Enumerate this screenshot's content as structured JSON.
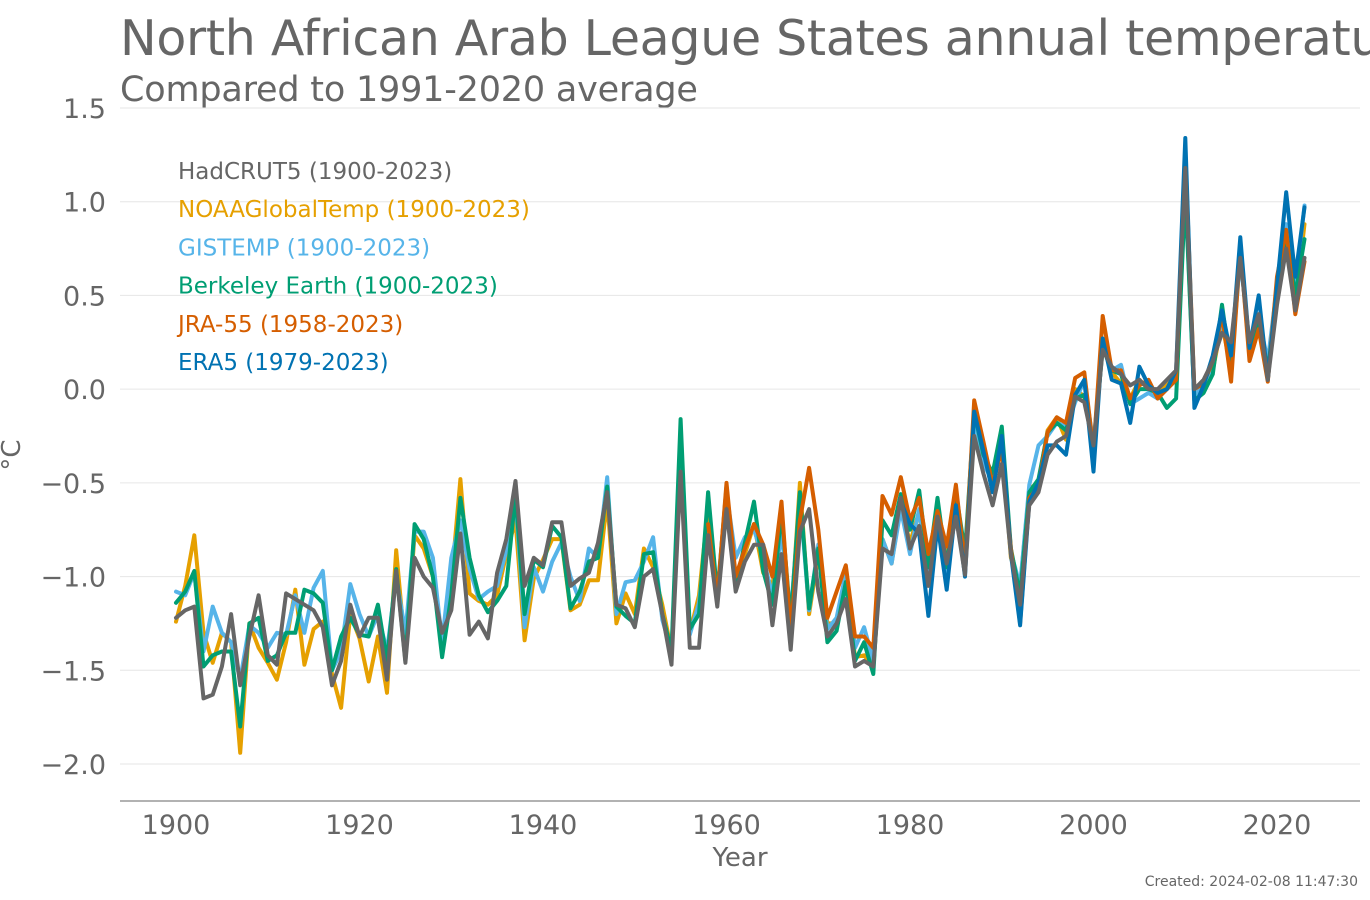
{
  "chart_data": {
    "type": "line",
    "title": "North African Arab League States annual temperature",
    "subtitle": "Compared to 1991-2020 average",
    "xlabel": "Year",
    "ylabel": "°C",
    "xlim": [
      1894,
      2029
    ],
    "ylim": [
      -2.2,
      1.5
    ],
    "x_ticks": [
      1900,
      1920,
      1940,
      1960,
      1980,
      2000,
      2020
    ],
    "x_tick_labels": [
      "1900",
      "1920",
      "1940",
      "1960",
      "1980",
      "2000",
      "2020"
    ],
    "y_ticks": [
      1.5,
      1.0,
      0.5,
      0.0,
      -0.5,
      -1.0,
      -1.5,
      -2.0
    ],
    "y_tick_labels": [
      "1.5",
      "1.0",
      "0.5",
      "0.0",
      "−0.5",
      "−1.0",
      "−1.5",
      "−2.0"
    ],
    "grid": true,
    "legend_position": "top-left",
    "created": "Created: 2024-02-08 11:47:30",
    "series": [
      {
        "name": "NOAAGlobalTemp (1900-2023)",
        "color": "#E6A000",
        "start": 1900,
        "values": [
          -1.24,
          -1.05,
          -0.78,
          -1.3,
          -1.46,
          -1.3,
          -1.35,
          -1.94,
          -1.25,
          -1.38,
          -1.46,
          -1.55,
          -1.35,
          -1.07,
          -1.47,
          -1.28,
          -1.24,
          -1.52,
          -1.7,
          -1.2,
          -1.33,
          -1.56,
          -1.32,
          -1.62,
          -0.86,
          -1.4,
          -0.78,
          -0.85,
          -1.0,
          -1.37,
          -1.03,
          -0.48,
          -1.09,
          -1.13,
          -1.15,
          -1.1,
          -0.88,
          -0.7,
          -1.34,
          -1.01,
          -0.91,
          -0.8,
          -0.8,
          -1.18,
          -1.15,
          -1.02,
          -1.02,
          -0.59,
          -1.25,
          -1.09,
          -1.2,
          -0.85,
          -0.95,
          -1.15,
          -1.4,
          -0.33,
          -1.3,
          -1.1,
          -0.63,
          -1.1,
          -0.62,
          -1.0,
          -0.88,
          -0.72,
          -0.98,
          -1.05,
          -0.7,
          -1.25,
          -0.5,
          -1.2,
          -0.88,
          -1.25,
          -1.25,
          -1.0,
          -1.43,
          -1.42,
          -1.48,
          -0.8,
          -0.93,
          -0.62,
          -0.82,
          -0.65,
          -1.0,
          -0.65,
          -0.93,
          -0.55,
          -0.95,
          -0.16,
          -0.32,
          -0.5,
          -0.3,
          -0.9,
          -1.05,
          -0.53,
          -0.5,
          -0.22,
          -0.15,
          -0.27,
          0.0,
          -0.04,
          -0.3,
          0.25,
          0.09,
          0.03,
          -0.05,
          0.05,
          0.0,
          -0.02,
          0.02,
          0.07,
          1.08,
          -0.06,
          0.01,
          0.1,
          0.35,
          0.1,
          0.75,
          0.2,
          0.35,
          0.12,
          0.55,
          0.85,
          0.45,
          0.88
        ]
      },
      {
        "name": "GISTEMP (1900-2023)",
        "color": "#56B4E9",
        "start": 1900,
        "values": [
          -1.08,
          -1.1,
          -0.98,
          -1.4,
          -1.16,
          -1.3,
          -1.35,
          -1.55,
          -1.26,
          -1.3,
          -1.38,
          -1.3,
          -1.31,
          -1.1,
          -1.3,
          -1.06,
          -0.97,
          -1.5,
          -1.4,
          -1.04,
          -1.2,
          -1.32,
          -1.2,
          -1.4,
          -1.0,
          -1.3,
          -0.76,
          -0.76,
          -0.9,
          -1.35,
          -0.9,
          -0.7,
          -0.96,
          -1.12,
          -1.08,
          -1.05,
          -0.86,
          -0.59,
          -1.27,
          -0.95,
          -1.08,
          -0.92,
          -0.82,
          -1.0,
          -1.13,
          -0.85,
          -0.9,
          -0.47,
          -1.2,
          -1.03,
          -1.02,
          -0.92,
          -0.79,
          -1.23,
          -1.4,
          -0.39,
          -1.31,
          -1.14,
          -0.72,
          -1.12,
          -0.55,
          -0.9,
          -0.79,
          -0.75,
          -0.9,
          -1.1,
          -0.77,
          -1.2,
          -0.58,
          -1.18,
          -0.83,
          -1.28,
          -1.22,
          -0.98,
          -1.38,
          -1.27,
          -1.45,
          -0.8,
          -0.93,
          -0.64,
          -0.88,
          -0.64,
          -1.0,
          -0.62,
          -0.98,
          -0.58,
          -0.92,
          -0.18,
          -0.4,
          -0.49,
          -0.26,
          -0.87,
          -1.05,
          -0.51,
          -0.3,
          -0.25,
          -0.18,
          -0.2,
          -0.07,
          0.05,
          -0.3,
          0.27,
          0.1,
          0.13,
          -0.08,
          -0.05,
          -0.02,
          -0.05,
          0.0,
          0.05,
          1.1,
          -0.04,
          0.03,
          0.12,
          0.38,
          0.12,
          0.7,
          0.24,
          0.38,
          0.15,
          0.55,
          0.88,
          0.55,
          0.98
        ]
      },
      {
        "name": "Berkeley Earth (1900-2023)",
        "color": "#009E73",
        "start": 1900,
        "values": [
          -1.14,
          -1.08,
          -0.97,
          -1.48,
          -1.42,
          -1.4,
          -1.4,
          -1.8,
          -1.25,
          -1.22,
          -1.45,
          -1.42,
          -1.3,
          -1.3,
          -1.07,
          -1.09,
          -1.14,
          -1.5,
          -1.32,
          -1.22,
          -1.31,
          -1.32,
          -1.15,
          -1.45,
          -0.96,
          -1.45,
          -0.72,
          -0.8,
          -1.0,
          -1.43,
          -1.1,
          -0.58,
          -0.9,
          -1.1,
          -1.19,
          -1.13,
          -1.05,
          -0.56,
          -1.2,
          -0.91,
          -0.95,
          -0.73,
          -0.79,
          -1.17,
          -1.08,
          -0.92,
          -0.9,
          -0.52,
          -1.16,
          -1.21,
          -1.25,
          -0.88,
          -0.87,
          -1.2,
          -1.4,
          -0.16,
          -1.28,
          -1.2,
          -0.55,
          -1.1,
          -0.52,
          -1.05,
          -0.82,
          -0.6,
          -0.97,
          -1.15,
          -0.65,
          -1.24,
          -0.55,
          -1.17,
          -0.85,
          -1.35,
          -1.29,
          -1.03,
          -1.45,
          -1.35,
          -1.52,
          -0.7,
          -0.78,
          -0.56,
          -0.75,
          -0.54,
          -0.95,
          -0.58,
          -0.95,
          -0.55,
          -0.87,
          -0.12,
          -0.35,
          -0.45,
          -0.2,
          -0.85,
          -1.1,
          -0.55,
          -0.48,
          -0.23,
          -0.18,
          -0.22,
          -0.05,
          -0.03,
          -0.32,
          0.22,
          0.1,
          0.08,
          -0.08,
          0.0,
          0.0,
          -0.02,
          -0.1,
          -0.05,
          1.05,
          -0.06,
          -0.02,
          0.08,
          0.45,
          0.1,
          0.75,
          0.18,
          0.35,
          0.1,
          0.5,
          0.82,
          0.5,
          0.8
        ]
      },
      {
        "name": "JRA-55 (1958-2023)",
        "color": "#D55E00",
        "start": 1958,
        "values": [
          -0.72,
          -1.12,
          -0.5,
          -1.0,
          -0.85,
          -0.72,
          -0.83,
          -1.0,
          -0.6,
          -1.3,
          -0.7,
          -0.42,
          -0.75,
          -1.22,
          -1.08,
          -0.94,
          -1.32,
          -1.32,
          -1.38,
          -0.57,
          -0.67,
          -0.47,
          -0.7,
          -0.58,
          -0.88,
          -0.65,
          -0.84,
          -0.51,
          -0.95,
          -0.06,
          -0.28,
          -0.51,
          -0.32,
          -0.85,
          -1.25,
          -0.58,
          -0.52,
          -0.23,
          -0.15,
          -0.18,
          0.06,
          0.09,
          -0.33,
          0.39,
          0.1,
          0.1,
          -0.05,
          0.02,
          0.05,
          -0.05,
          0.0,
          0.05,
          1.25,
          0.0,
          0.03,
          0.15,
          0.4,
          0.04,
          0.75,
          0.15,
          0.32,
          0.04,
          0.6,
          0.85,
          0.4,
          0.68
        ]
      },
      {
        "name": "ERA5 (1979-2023)",
        "color": "#0072B2",
        "start": 1979,
        "values": [
          -0.6,
          -0.72,
          -0.77,
          -1.21,
          -0.72,
          -1.07,
          -0.62,
          -1.0,
          -0.12,
          -0.33,
          -0.55,
          -0.25,
          -0.88,
          -1.26,
          -0.6,
          -0.5,
          -0.3,
          -0.3,
          -0.35,
          -0.03,
          0.05,
          -0.44,
          0.27,
          0.05,
          0.03,
          -0.18,
          0.12,
          0.02,
          -0.02,
          0.0,
          0.1,
          1.34,
          -0.1,
          0.02,
          0.18,
          0.42,
          0.18,
          0.81,
          0.22,
          0.5,
          0.05,
          0.55,
          1.05,
          0.6,
          0.97
        ]
      },
      {
        "name": "HadCRUT5 (1900-2023)",
        "color": "#666666",
        "start": 1900,
        "values": [
          -1.22,
          -1.18,
          -1.16,
          -1.65,
          -1.63,
          -1.48,
          -1.2,
          -1.58,
          -1.32,
          -1.1,
          -1.42,
          -1.47,
          -1.09,
          -1.12,
          -1.15,
          -1.18,
          -1.27,
          -1.58,
          -1.45,
          -1.15,
          -1.32,
          -1.22,
          -1.22,
          -1.55,
          -0.97,
          -1.46,
          -0.9,
          -1.0,
          -1.06,
          -1.3,
          -1.18,
          -0.77,
          -1.31,
          -1.24,
          -1.33,
          -0.98,
          -0.8,
          -0.49,
          -1.05,
          -0.9,
          -0.94,
          -0.71,
          -0.71,
          -1.05,
          -1.01,
          -0.98,
          -0.82,
          -0.55,
          -1.15,
          -1.17,
          -1.27,
          -1.0,
          -0.96,
          -1.2,
          -1.47,
          -0.44,
          -1.38,
          -1.38,
          -0.78,
          -1.16,
          -0.64,
          -1.08,
          -0.92,
          -0.83,
          -0.83,
          -1.26,
          -0.88,
          -1.39,
          -0.76,
          -0.64,
          -1.08,
          -1.32,
          -1.25,
          -1.12,
          -1.48,
          -1.45,
          -1.48,
          -0.85,
          -0.88,
          -0.58,
          -0.85,
          -0.73,
          -1.05,
          -0.68,
          -0.93,
          -0.68,
          -0.99,
          -0.25,
          -0.45,
          -0.62,
          -0.4,
          -0.88,
          -1.15,
          -0.62,
          -0.55,
          -0.35,
          -0.28,
          -0.25,
          -0.04,
          -0.07,
          -0.3,
          0.21,
          0.12,
          0.08,
          0.02,
          0.05,
          0.0,
          0.0,
          0.05,
          0.1,
          1.18,
          0.0,
          0.05,
          0.15,
          0.3,
          0.25,
          0.7,
          0.25,
          0.4,
          0.05,
          0.45,
          0.75,
          0.42,
          0.7
        ]
      }
    ]
  }
}
